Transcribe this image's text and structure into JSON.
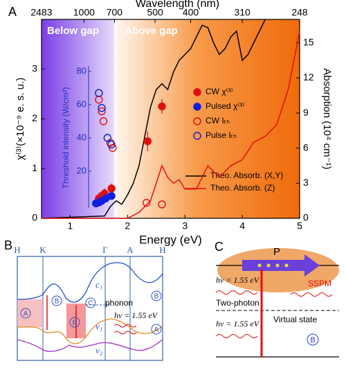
{
  "chart_data": {
    "type": "line",
    "panel": "A",
    "title_top": "Wavelength (nm)",
    "xlabel": "Energy (eV)",
    "ylabel": "χ⁽³⁾(×10⁻⁹ e. s. u.)",
    "y2label": "Absorption (10⁴ cm⁻¹)",
    "insetlabel": "Threshold intensity (W/cm²)",
    "region_labels": [
      "Below gap",
      "Above gap"
    ],
    "gap_energy": 1.77,
    "xlim": [
      0.5,
      5
    ],
    "xticks": [
      1,
      2,
      3,
      4,
      5
    ],
    "top_ticks": [
      2483,
      1000,
      700,
      500,
      400,
      310,
      248
    ],
    "ylim": [
      0,
      4
    ],
    "yticks": [
      0,
      1,
      2,
      3
    ],
    "y2lim": [
      0,
      17
    ],
    "y2ticks": [
      0,
      3,
      6,
      9,
      12,
      15
    ],
    "insetlim": [
      0,
      80
    ],
    "insetticks": [
      20,
      40,
      60,
      80
    ],
    "series": [
      {
        "name": "Theo. Absorb. (X,Y)",
        "color": "#000000",
        "kind": "line",
        "axis": "y2",
        "x": [
          0.5,
          1.6,
          1.7,
          1.8,
          1.9,
          2.0,
          2.1,
          2.2,
          2.3,
          2.4,
          2.5,
          2.6,
          2.7,
          2.8,
          2.9,
          3.0,
          3.1,
          3.2,
          3.3,
          3.4,
          3.5,
          3.6,
          3.7,
          3.8,
          3.9,
          4.0,
          4.1,
          4.2,
          4.3,
          4.4
        ],
        "values": [
          0,
          0.2,
          1,
          1.5,
          1.2,
          2,
          3,
          4.5,
          7,
          9.5,
          11,
          11.5,
          11,
          12.5,
          13.5,
          14,
          14.5,
          15.5,
          16.5,
          16.3,
          15,
          14,
          14.5,
          15.5,
          16,
          13.5,
          14,
          15,
          16,
          17
        ]
      },
      {
        "name": "Theo. Absorb. (Z)",
        "color": "#e01010",
        "kind": "line",
        "axis": "y2",
        "x": [
          0.5,
          2.0,
          2.2,
          2.4,
          2.5,
          2.6,
          2.7,
          2.8,
          2.9,
          3.0,
          3.2,
          3.4,
          3.5,
          3.6,
          3.8,
          4.0,
          4.2,
          4.4,
          4.6,
          4.8,
          4.9,
          5.0
        ],
        "values": [
          0,
          0,
          0.5,
          1.5,
          3,
          4.5,
          3.5,
          3,
          3.3,
          2.5,
          2.5,
          4.5,
          4,
          3.5,
          4.5,
          5,
          6.5,
          7,
          8,
          11,
          13.5,
          16
        ]
      },
      {
        "name": "CW χ⁽³⁾",
        "color": "#e01010",
        "kind": "filled",
        "axis": "y",
        "x": [
          1.5,
          1.55,
          1.6,
          1.72,
          2.35,
          2.6
        ],
        "values": [
          0.4,
          0.45,
          0.5,
          0.6,
          1.55,
          2.25
        ],
        "errors": [
          0.05,
          0.05,
          0.1,
          0.1,
          0.2,
          0.15
        ]
      },
      {
        "name": "Pulsed χ⁽³⁾",
        "color": "#1020e0",
        "kind": "filled",
        "axis": "y",
        "x": [
          1.45,
          1.5,
          1.55,
          1.62,
          1.72
        ],
        "values": [
          0.3,
          0.32,
          0.35,
          0.4,
          0.45
        ],
        "errors": [
          0.05,
          0.05,
          0.05,
          0.05,
          0.05
        ]
      },
      {
        "name": "CW Iₜₕ",
        "color": "#e01010",
        "kind": "open",
        "axis": "inset",
        "x": [
          1.5,
          1.55,
          1.58,
          1.7,
          1.74,
          2.33,
          2.6
        ],
        "values": [
          63,
          56,
          50,
          37,
          34,
          1,
          0
        ]
      },
      {
        "name": "Pulse Iₜₕ",
        "color": "#1020c0",
        "kind": "open",
        "axis": "inset",
        "x": [
          1.5,
          1.55,
          1.65,
          1.72
        ],
        "values": [
          67,
          58,
          40,
          36
        ]
      }
    ]
  },
  "panel_b": {
    "label": "B",
    "k_points": [
      "H",
      "K",
      "Γ",
      "A",
      "H"
    ],
    "bands": [
      "c₁",
      "v₁",
      "v₂"
    ],
    "circled": [
      "A",
      "B",
      "B",
      "C",
      "B",
      "A"
    ],
    "phonon": "phonon",
    "photon": "hν = 1.55 eV"
  },
  "panel_c": {
    "label": "C",
    "p": "P",
    "photon_top": "hν = 1.55 eV",
    "photon_bottom": "hν = 1.55 eV",
    "sspm": "SSPM",
    "two_photon": "Two-photon",
    "virtual": "Virtual state",
    "circled": "B"
  }
}
